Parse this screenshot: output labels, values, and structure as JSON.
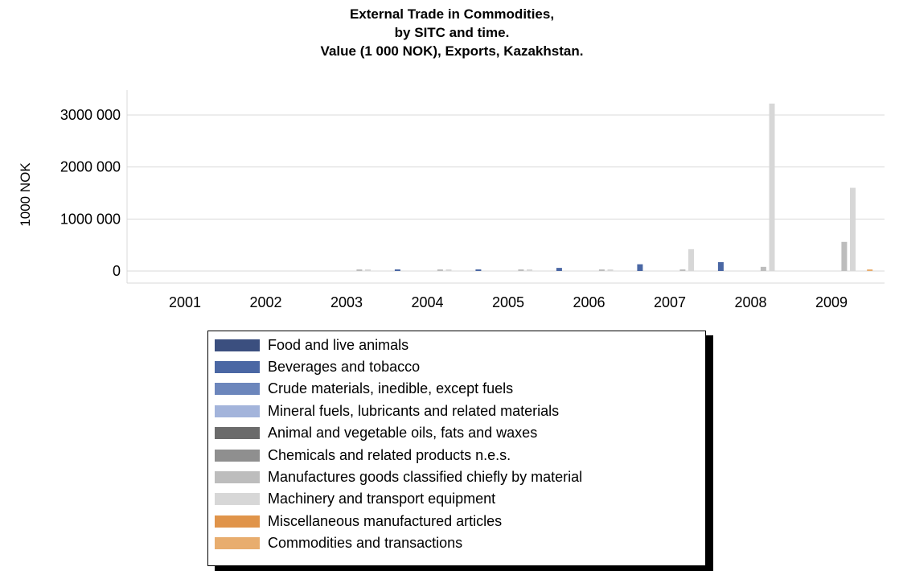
{
  "chart_data": {
    "type": "bar",
    "title_lines": [
      "External Trade in Commodities,",
      "by SITC and time.",
      "Value (1 000 NOK), Exports, Kazakhstan."
    ],
    "ylabel": "1000 NOK",
    "ylim": [
      -100000,
      3300000
    ],
    "yticks": [
      0,
      1000000,
      2000000,
      3000000
    ],
    "ytick_labels": [
      "0",
      "1000 000",
      "2000 000",
      "3000 000"
    ],
    "categories": [
      "2001",
      "2002",
      "2003",
      "2004",
      "2005",
      "2006",
      "2007",
      "2008",
      "2009"
    ],
    "grid": true,
    "legend_position": "bottom",
    "series": [
      {
        "name": "Food and live animals",
        "color": "#3b4f7f",
        "values": [
          0,
          0,
          0,
          0,
          0,
          0,
          0,
          0,
          0
        ]
      },
      {
        "name": "Beverages and tobacco",
        "color": "#4a67a4",
        "values": [
          0,
          0,
          0,
          20000,
          15000,
          60000,
          130000,
          170000,
          0
        ]
      },
      {
        "name": "Crude materials, inedible, except fuels",
        "color": "#6c86bc",
        "values": [
          0,
          0,
          0,
          0,
          0,
          0,
          0,
          0,
          0
        ]
      },
      {
        "name": "Mineral fuels, lubricants and related materials",
        "color": "#a3b4db",
        "values": [
          0,
          0,
          0,
          0,
          0,
          0,
          0,
          0,
          0
        ]
      },
      {
        "name": "Animal and vegetable oils, fats and waxes",
        "color": "#6b6b6b",
        "values": [
          0,
          0,
          0,
          0,
          0,
          0,
          0,
          0,
          0
        ]
      },
      {
        "name": "Chemicals and related products n.e.s.",
        "color": "#8f8f8f",
        "values": [
          0,
          0,
          0,
          0,
          0,
          0,
          0,
          0,
          0
        ]
      },
      {
        "name": "Manufactures goods classified chiefly by material",
        "color": "#bdbdbd",
        "values": [
          0,
          0,
          5000,
          5000,
          5000,
          5000,
          10000,
          80000,
          560000
        ]
      },
      {
        "name": "Machinery and transport equipment",
        "color": "#d7d7d7",
        "values": [
          0,
          0,
          25000,
          25000,
          20000,
          25000,
          420000,
          3220000,
          1600000
        ]
      },
      {
        "name": "Miscellaneous manufactured articles",
        "color": "#e0944a",
        "values": [
          0,
          0,
          0,
          0,
          0,
          0,
          0,
          0,
          0
        ]
      },
      {
        "name": "Commodities and transactions",
        "color": "#e8ad6e",
        "values": [
          0,
          0,
          0,
          0,
          0,
          0,
          0,
          0,
          20000
        ]
      }
    ]
  }
}
